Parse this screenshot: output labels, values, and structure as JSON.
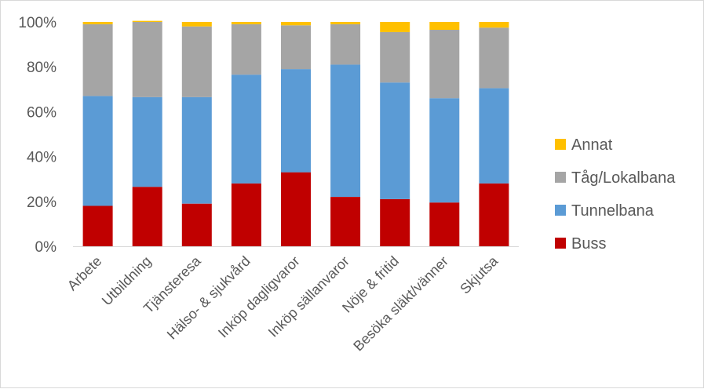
{
  "chart_data": {
    "type": "bar",
    "stacked": true,
    "percent": true,
    "categories": [
      "Arbete",
      "Utbildning",
      "Tjänsteresa",
      "Hälso- & sjukvård",
      "Inköp dagligvaror",
      "Inköp sällanvaror",
      "Nöje & fritid",
      "Besöka släkt/vänner",
      "Skjutsa"
    ],
    "series": [
      {
        "name": "Buss",
        "color": "#C00000",
        "values": [
          18,
          26.5,
          19,
          28,
          33,
          22,
          21,
          19.5,
          28
        ]
      },
      {
        "name": "Tunnelbana",
        "color": "#5B9BD5",
        "values": [
          49,
          40,
          47.5,
          48.5,
          46,
          59,
          52,
          46.5,
          42.5
        ]
      },
      {
        "name": "Tåg/Lokalbana",
        "color": "#A5A5A5",
        "values": [
          32,
          33.5,
          31.5,
          22.5,
          19.5,
          18,
          22.5,
          30.5,
          27
        ]
      },
      {
        "name": "Annat",
        "color": "#FFC000",
        "values": [
          1,
          0.5,
          2,
          1,
          1.5,
          1,
          4.5,
          3.5,
          2.5
        ]
      }
    ],
    "yticks": [
      "0%",
      "20%",
      "40%",
      "60%",
      "80%",
      "100%"
    ],
    "ylim": [
      0,
      100
    ],
    "legend_position": "right",
    "legend_order": [
      "Annat",
      "Tåg/Lokalbana",
      "Tunnelbana",
      "Buss"
    ],
    "grid": false,
    "title": "",
    "xlabel": "",
    "ylabel": ""
  }
}
